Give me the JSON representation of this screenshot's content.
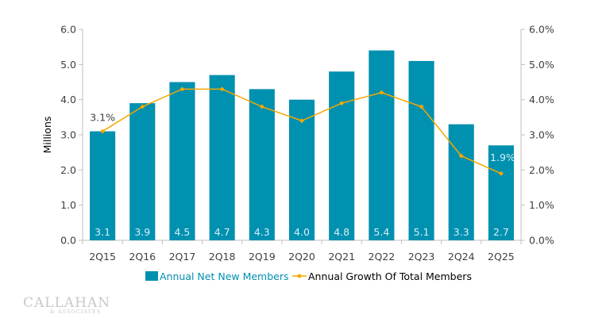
{
  "chart_data": {
    "type": "bar",
    "title": "",
    "xlabel": "",
    "ylabel": "Millions",
    "y2label": "",
    "categories": [
      "2Q15",
      "2Q16",
      "2Q17",
      "2Q18",
      "2Q19",
      "2Q20",
      "2Q21",
      "2Q22",
      "2Q23",
      "2Q24",
      "2Q25"
    ],
    "series": [
      {
        "name": "Annual Net New Members",
        "type": "bar",
        "axis": "left",
        "color": "#0090b0",
        "values": [
          3.1,
          3.9,
          4.5,
          4.7,
          4.3,
          4.0,
          4.8,
          5.4,
          5.1,
          3.3,
          2.7
        ],
        "labels": [
          "3.1",
          "3.9",
          "4.5",
          "4.7",
          "4.3",
          "4.0",
          "4.8",
          "5.4",
          "5.1",
          "3.3",
          "2.7"
        ]
      },
      {
        "name": "Annual Growth Of Total Members",
        "type": "line",
        "axis": "right",
        "color": "#f5a800",
        "values": [
          3.1,
          3.8,
          4.3,
          4.3,
          3.8,
          3.4,
          3.9,
          4.2,
          3.8,
          2.4,
          1.9
        ],
        "point_labels": {
          "0": "3.1%",
          "10": "1.9%"
        }
      }
    ],
    "ylim": [
      0,
      6
    ],
    "y2lim": [
      0,
      6
    ],
    "yticks": [
      "0.0",
      "1.0",
      "2.0",
      "3.0",
      "4.0",
      "5.0",
      "6.0"
    ],
    "y2ticks": [
      "0.0%",
      "1.0%",
      "2.0%",
      "3.0%",
      "4.0%",
      "5.0%",
      "6.0%"
    ],
    "grid": false,
    "legend": "bottom"
  },
  "colors": {
    "bar": "#0090b0",
    "line": "#f5a800",
    "axis": "#bfbfbf",
    "text": "#404040"
  },
  "logo": {
    "main": "CALLAHAN",
    "sub": "& ASSOCIATES"
  }
}
